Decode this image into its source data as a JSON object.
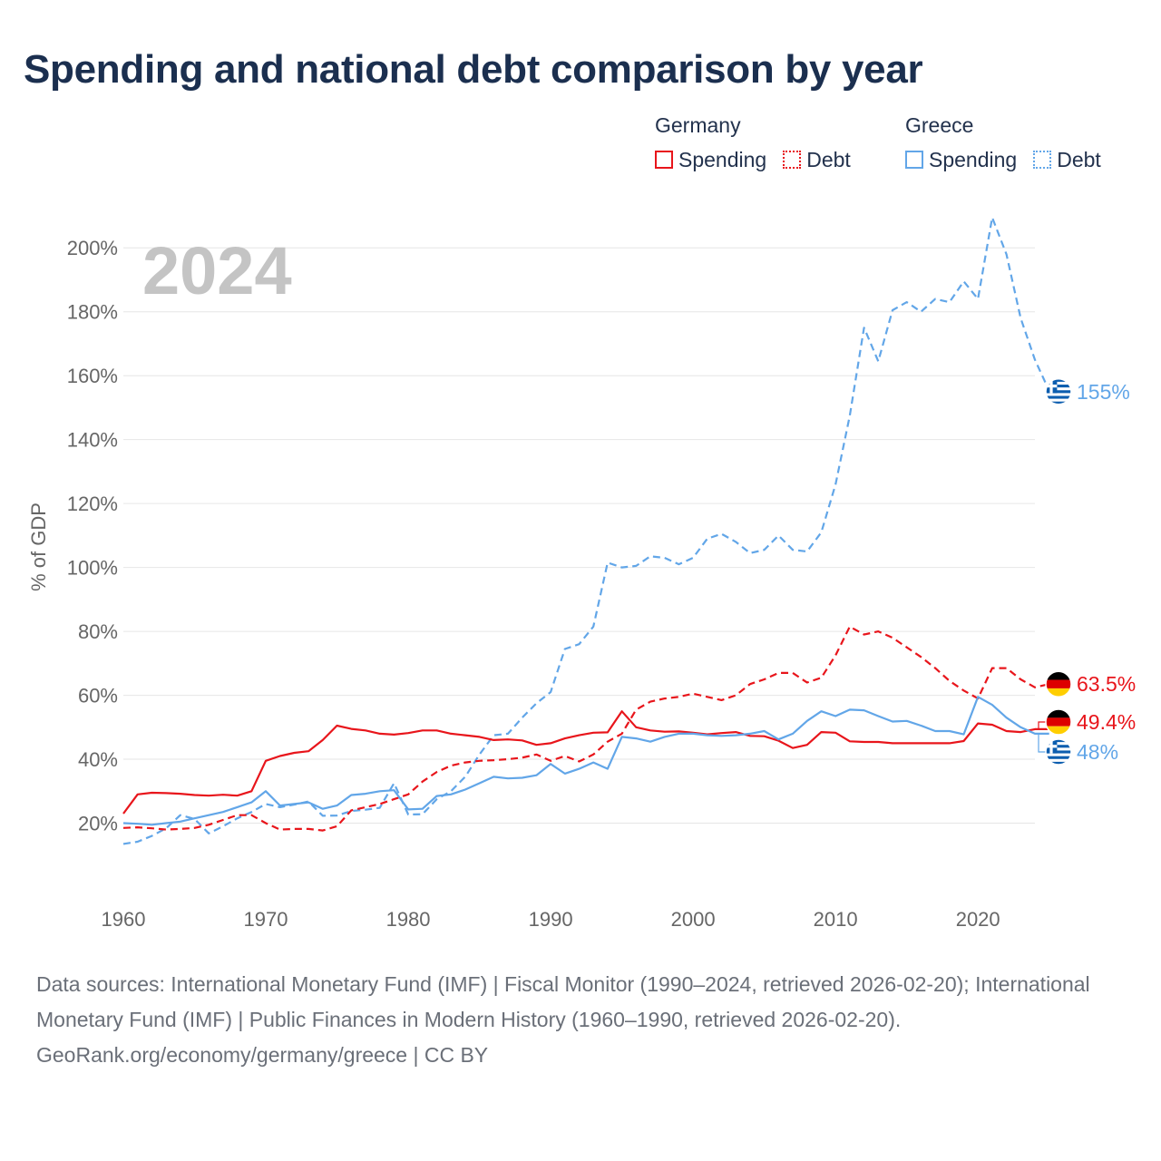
{
  "title": "Spending and national debt comparison by year",
  "legend": {
    "groups": [
      {
        "country": "Germany",
        "color": "#e8151b",
        "items": [
          {
            "label": "Spending",
            "style": "solid"
          },
          {
            "label": "Debt",
            "style": "dotted"
          }
        ]
      },
      {
        "country": "Greece",
        "color": "#62a6e8",
        "items": [
          {
            "label": "Spending",
            "style": "solid"
          },
          {
            "label": "Debt",
            "style": "dotted"
          }
        ]
      }
    ]
  },
  "footer": {
    "sources": "Data sources: International Monetary Fund (IMF) | Fiscal Monitor (1990–2024, retrieved 2026-02-20); International Monetary Fund (IMF) | Public Finances in Modern History (1960–1990, retrieved 2026-02-20).",
    "credit": "GeoRank.org/economy/germany/greece | CC BY"
  },
  "chart_data": {
    "type": "line",
    "year_label": "2024",
    "ylabel": "% of GDP",
    "xlabel": "",
    "xlim": [
      1960,
      2024
    ],
    "ylim": [
      0,
      210
    ],
    "x_ticks": [
      1960,
      1970,
      1980,
      1990,
      2000,
      2010,
      2020
    ],
    "y_ticks": [
      20,
      40,
      60,
      80,
      100,
      120,
      140,
      160,
      180,
      200
    ],
    "y_tick_labels": [
      "20%",
      "40%",
      "60%",
      "80%",
      "100%",
      "120%",
      "140%",
      "160%",
      "180%",
      "200%"
    ],
    "start_year": 1960,
    "series": [
      {
        "name": "Greece Debt",
        "country": "Greece",
        "metric": "Debt",
        "color": "#62a6e8",
        "dash": "8,5",
        "end_label": "155%",
        "values": [
          13.5,
          14.2,
          16,
          18.4,
          22.5,
          21.3,
          16.8,
          19,
          21.5,
          23.5,
          26,
          25,
          25.8,
          26.8,
          22.3,
          22.4,
          23.8,
          24.2,
          24.8,
          32.5,
          22.7,
          22.8,
          27.5,
          30,
          34.5,
          41.5,
          47.5,
          48,
          53,
          57.5,
          61,
          74.5,
          76,
          81.5,
          101.5,
          100,
          100.5,
          103.5,
          103,
          101,
          103,
          109,
          110.5,
          108,
          104.5,
          105.5,
          110,
          105.5,
          105,
          111,
          126,
          147.5,
          175,
          164.5,
          180.5,
          183,
          180,
          184,
          183,
          189.5,
          184,
          209.5,
          198,
          178,
          165,
          155.3,
          155
        ]
      },
      {
        "name": "Germany Debt",
        "country": "Germany",
        "metric": "Debt",
        "color": "#e8151b",
        "dash": "8,5",
        "end_label": "63.5%",
        "values": [
          18.5,
          18.7,
          18.4,
          18,
          18.2,
          18.5,
          19.5,
          21,
          22.5,
          22.5,
          20,
          18,
          18.2,
          18.2,
          17.7,
          19,
          24,
          25,
          26,
          27.5,
          29,
          33,
          36,
          38,
          39,
          39.5,
          39.7,
          40,
          40.5,
          41.5,
          39.5,
          41,
          39.3,
          41.5,
          45.5,
          48,
          55.5,
          58,
          59,
          59.5,
          60.5,
          59.5,
          58.5,
          60,
          63.5,
          65,
          67,
          67,
          64,
          65.5,
          72.5,
          81.5,
          79,
          80,
          78,
          75,
          72,
          68.5,
          64.5,
          61.5,
          59,
          68.5,
          68.5,
          65,
          62.5,
          63.5,
          63.5
        ]
      },
      {
        "name": "Germany Spending",
        "country": "Germany",
        "metric": "Spending",
        "color": "#e8151b",
        "dash": "",
        "end_label": "49.4%",
        "values": [
          23,
          29,
          29.5,
          29.4,
          29.2,
          28.8,
          28.6,
          28.9,
          28.6,
          30,
          39.5,
          41,
          42,
          42.5,
          46,
          50.5,
          49.5,
          49,
          48,
          47.7,
          48.2,
          49,
          49,
          48,
          47.5,
          47,
          46,
          46.2,
          45.9,
          44.5,
          45,
          46.5,
          47.5,
          48.3,
          48.4,
          55,
          50,
          49,
          48.6,
          48.7,
          48.3,
          47.8,
          48.2,
          48.5,
          47.3,
          47.2,
          45.8,
          43.5,
          44.5,
          48.5,
          48.3,
          45.6,
          45.4,
          45.4,
          45,
          45,
          45,
          45,
          45,
          45.7,
          51.2,
          50.8,
          48.8,
          48.5,
          49.4,
          49.4
        ]
      },
      {
        "name": "Greece Spending",
        "country": "Greece",
        "metric": "Spending",
        "color": "#62a6e8",
        "dash": "",
        "end_label": "48%",
        "values": [
          20,
          19.8,
          19.5,
          20,
          20.5,
          21.5,
          22.5,
          23.5,
          25,
          26.5,
          30,
          25.5,
          26,
          26.5,
          24.5,
          25.5,
          28.8,
          29.2,
          30,
          30.3,
          24.3,
          24.5,
          28.5,
          29,
          30.5,
          32.5,
          34.5,
          34,
          34.2,
          35,
          38.5,
          35.5,
          37,
          39,
          37,
          47,
          46.5,
          45.5,
          47,
          48,
          48,
          47.5,
          47.3,
          47.5,
          48,
          48.8,
          46.2,
          48,
          52,
          55,
          53.5,
          55.5,
          55.3,
          53.5,
          51.8,
          52,
          50.5,
          48.8,
          48.8,
          47.8,
          59.5,
          57,
          53,
          50,
          48,
          48
        ]
      }
    ]
  }
}
